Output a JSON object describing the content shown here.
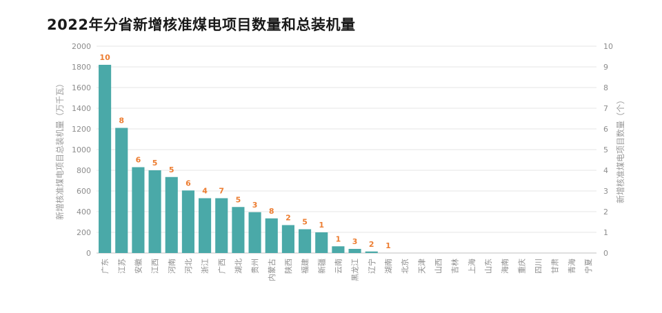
{
  "chart_data": {
    "type": "bar",
    "title": "2022年分省新增核准煤电项目数量和总装机量",
    "ylabel": "新增核准煤电项目总装机量（万千瓦）",
    "y2label": "新增核准煤电项目数量（个）",
    "ylim": [
      0,
      2000
    ],
    "y2lim": [
      0,
      10
    ],
    "yticks": [
      0,
      200,
      400,
      600,
      800,
      1000,
      1200,
      1400,
      1600,
      1800,
      2000
    ],
    "y2ticks": [
      0,
      1,
      2,
      3,
      4,
      5,
      6,
      7,
      8,
      9,
      10
    ],
    "grid": true,
    "colors": {
      "bar": "#4aa9a8",
      "label": "#ed7d31"
    },
    "categories": [
      "广东",
      "江苏",
      "安徽",
      "江西",
      "河南",
      "河北",
      "浙江",
      "广西",
      "湖北",
      "贵州",
      "内蒙古",
      "陕西",
      "福建",
      "新疆",
      "云南",
      "黑龙江",
      "辽宁",
      "湖南",
      "北京",
      "天津",
      "山西",
      "吉林",
      "上海",
      "山东",
      "海南",
      "重庆",
      "四川",
      "甘肃",
      "青海",
      "宁夏"
    ],
    "series": [
      {
        "axis": "left",
        "values": [
          1820,
          1210,
          830,
          800,
          735,
          605,
          530,
          530,
          445,
          395,
          335,
          270,
          230,
          200,
          65,
          40,
          15,
          0,
          0,
          0,
          0,
          0,
          0,
          0,
          0,
          0,
          0,
          0,
          0,
          0
        ]
      },
      {
        "axis": "right",
        "labels": [
          "10",
          "8",
          "6",
          "5",
          "5",
          "6",
          "4",
          "7",
          "5",
          "3",
          "8",
          "2",
          "5",
          "1",
          "1",
          "3",
          "2",
          "1",
          "",
          "",
          "",
          "",
          "",
          "",
          "",
          "",
          "",
          "",
          "",
          ""
        ]
      }
    ]
  }
}
